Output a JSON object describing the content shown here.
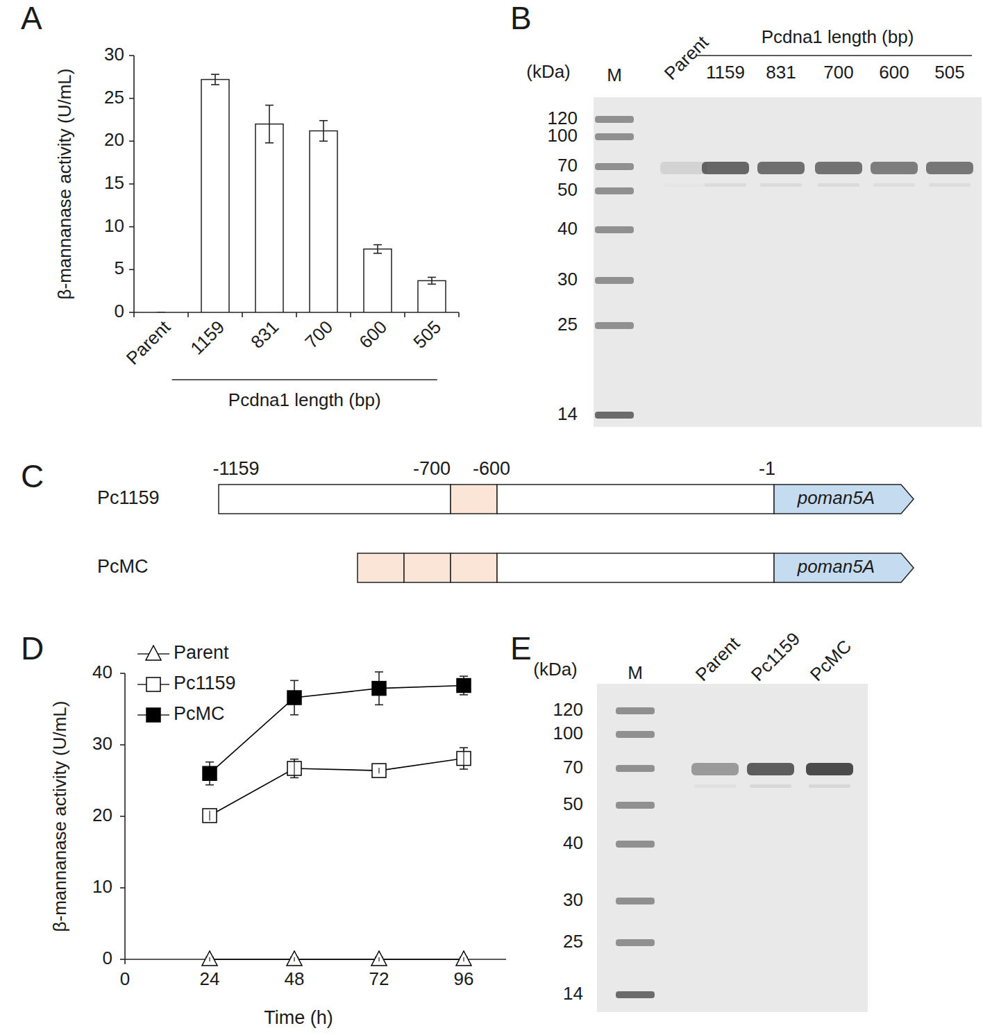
{
  "panel_labels": [
    "A",
    "B",
    "C",
    "D",
    "E"
  ],
  "chart_data": [
    {
      "type": "bar",
      "categories": [
        "Parent",
        "1159",
        "831",
        "700",
        "600",
        "505"
      ],
      "values": [
        0,
        27.2,
        22.0,
        21.2,
        7.4,
        3.7
      ],
      "errors": [
        0,
        0.6,
        2.2,
        1.2,
        0.5,
        0.4
      ],
      "color": "#ffffff",
      "ylabel": "β-mannanase activity (U/mL)",
      "xlabel": "Pcdna1 length (bp)",
      "ylim": [
        0,
        30
      ],
      "yticks": [
        0,
        5,
        10,
        15,
        20,
        25,
        30
      ]
    },
    {
      "type": "line",
      "x": [
        24,
        48,
        72,
        96
      ],
      "series": [
        {
          "name": "Parent",
          "color": "#000000",
          "marker": "open-triangle",
          "values": [
            0,
            0,
            0,
            0
          ],
          "errors": [
            0.3,
            0.3,
            0.3,
            0.3
          ]
        },
        {
          "name": "Pc1159",
          "color": "#000000",
          "marker": "open-square",
          "values": [
            20.1,
            26.7,
            26.4,
            28.1
          ],
          "errors": [
            0.7,
            1.3,
            0.4,
            1.5
          ]
        },
        {
          "name": "PcMC",
          "color": "#000000",
          "marker": "square",
          "values": [
            26.0,
            36.6,
            37.9,
            38.3
          ],
          "errors": [
            1.6,
            2.4,
            2.3,
            1.3
          ]
        }
      ],
      "xlabel": "Time (h)",
      "ylabel": "β-mannanase activity (U/mL)",
      "xlim": [
        0,
        108
      ],
      "xticks": [
        0,
        24,
        48,
        72,
        96
      ],
      "ylim": [
        0,
        40
      ],
      "yticks": [
        0,
        10,
        20,
        30,
        40
      ],
      "legend": "upper left"
    }
  ],
  "gels": [
    {
      "unit_label": "(kDa)",
      "marker_label": "M",
      "marker_sizes": [
        120,
        100,
        70,
        50,
        40,
        30,
        25,
        14
      ],
      "lanes": [
        "Parent",
        "1159",
        "831",
        "700",
        "600",
        "505"
      ],
      "group_label": "Pcdna1 length (bp)",
      "band_intensity": [
        0.12,
        0.75,
        0.7,
        0.68,
        0.62,
        0.65
      ]
    },
    {
      "unit_label": "(kDa)",
      "marker_label": "M",
      "marker_sizes": [
        120,
        100,
        70,
        50,
        40,
        30,
        25,
        14
      ],
      "lanes": [
        "Parent",
        "Pc1159",
        "PcMC"
      ],
      "band_intensity": [
        0.45,
        0.8,
        0.9
      ]
    }
  ],
  "diagram": {
    "constructs": [
      "Pc1159",
      "PcMC"
    ],
    "positions": [
      "-1159",
      "-700",
      "-600",
      "-1"
    ],
    "gene": "poman5A"
  }
}
